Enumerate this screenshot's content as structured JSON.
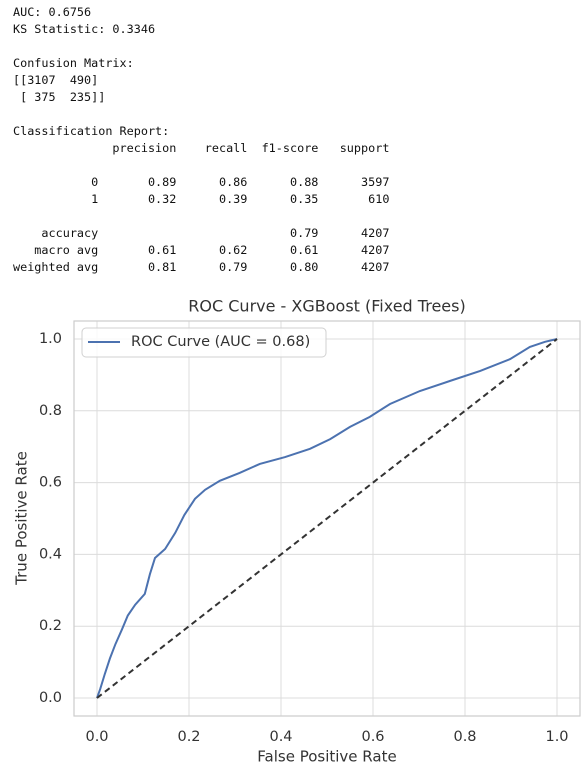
{
  "output": {
    "blocks": [
      {
        "lines": [
          "AUC: 0.6756",
          "KS Statistic: 0.3346"
        ]
      },
      {
        "lines": [
          "Confusion Matrix:",
          "[[3107  490]",
          " [ 375  235]]"
        ]
      },
      {
        "lines": [
          "Classification Report:",
          "              precision    recall  f1-score   support"
        ]
      },
      {
        "lines": [
          "           0       0.89      0.86      0.88      3597",
          "           1       0.32      0.39      0.35       610"
        ]
      },
      {
        "lines": [
          "    accuracy                           0.79      4207",
          "   macro avg       0.61      0.62      0.61      4207",
          "weighted avg       0.81      0.79      0.80      4207"
        ]
      }
    ]
  },
  "chart_data": {
    "type": "line",
    "title": "ROC Curve - XGBoost (Fixed Trees)",
    "xlabel": "False Positive Rate",
    "ylabel": "True Positive Rate",
    "xlim": [
      -0.05,
      1.05
    ],
    "ylim": [
      -0.05,
      1.05
    ],
    "xticks": [
      {
        "value": 0,
        "label": "0.0"
      },
      0.2,
      0.4,
      0.6,
      0.8,
      {
        "value": 1,
        "label": "1.0"
      }
    ],
    "yticks": [
      {
        "value": 0,
        "label": "0.0"
      },
      0.2,
      0.4,
      0.6,
      0.8,
      {
        "value": 1,
        "label": "1.0"
      }
    ],
    "grid": true,
    "legend": "upper left",
    "series": [
      {
        "name": "ROC Curve (AUC = 0.68)",
        "color": "#4c72b0",
        "style": "solid",
        "x": [
          0,
          0.007,
          0.017,
          0.028,
          0.04,
          0.054,
          0.067,
          0.083,
          0.104,
          0.115,
          0.126,
          0.148,
          0.17,
          0.19,
          0.213,
          0.235,
          0.267,
          0.31,
          0.354,
          0.409,
          0.463,
          0.507,
          0.55,
          0.593,
          0.637,
          0.702,
          0.767,
          0.833,
          0.898,
          0.941,
          0.974,
          1
        ],
        "values": [
          0,
          0.025,
          0.067,
          0.11,
          0.15,
          0.19,
          0.23,
          0.26,
          0.29,
          0.345,
          0.39,
          0.415,
          0.46,
          0.51,
          0.555,
          0.58,
          0.605,
          0.627,
          0.652,
          0.671,
          0.694,
          0.721,
          0.755,
          0.783,
          0.819,
          0.855,
          0.883,
          0.911,
          0.944,
          0.978,
          0.992,
          1
        ]
      },
      {
        "color": "#333333",
        "style": "dashed",
        "x": [
          0,
          1
        ],
        "values": [
          0,
          1
        ]
      }
    ]
  }
}
